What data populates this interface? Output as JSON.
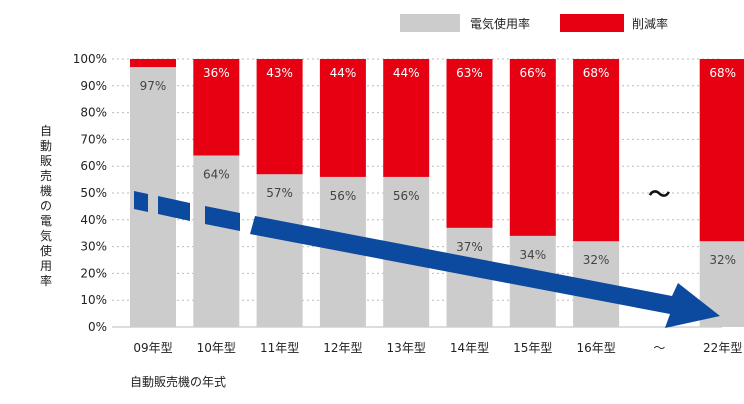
{
  "chart_data": {
    "type": "bar",
    "stacked": true,
    "categories": [
      "09年型",
      "10年型",
      "11年型",
      "12年型",
      "13年型",
      "14年型",
      "15年型",
      "16年型",
      "～",
      "22年型"
    ],
    "series": [
      {
        "name": "電気使用率",
        "values": [
          97,
          64,
          57,
          56,
          56,
          37,
          34,
          32,
          null,
          32
        ],
        "labels": [
          "97%",
          "64%",
          "57%",
          "56%",
          "56%",
          "37%",
          "34%",
          "32%",
          "",
          "32%"
        ]
      },
      {
        "name": "削減率",
        "values": [
          3,
          36,
          43,
          44,
          44,
          63,
          66,
          68,
          null,
          68
        ],
        "labels": [
          "",
          "36%",
          "43%",
          "44%",
          "44%",
          "63%",
          "66%",
          "68%",
          "",
          "68%"
        ]
      }
    ],
    "gap_marker": "～",
    "xlabel": "自動販売機の年式",
    "ylabel": "自動販売機の電気使用率",
    "ylim": [
      0,
      100
    ],
    "yticks": [
      "0%",
      "10%",
      "20%",
      "30%",
      "40%",
      "50%",
      "60%",
      "70%",
      "80%",
      "90%",
      "100%"
    ],
    "grid": true,
    "legend_position": "top-right",
    "colors": {
      "usage": "#cccccc",
      "reduction": "#e60012",
      "arrow": "#0b4a9e",
      "grid": "#bbbbbb",
      "label_on_red": "#ffffff",
      "label_on_gray": "#444444"
    }
  }
}
